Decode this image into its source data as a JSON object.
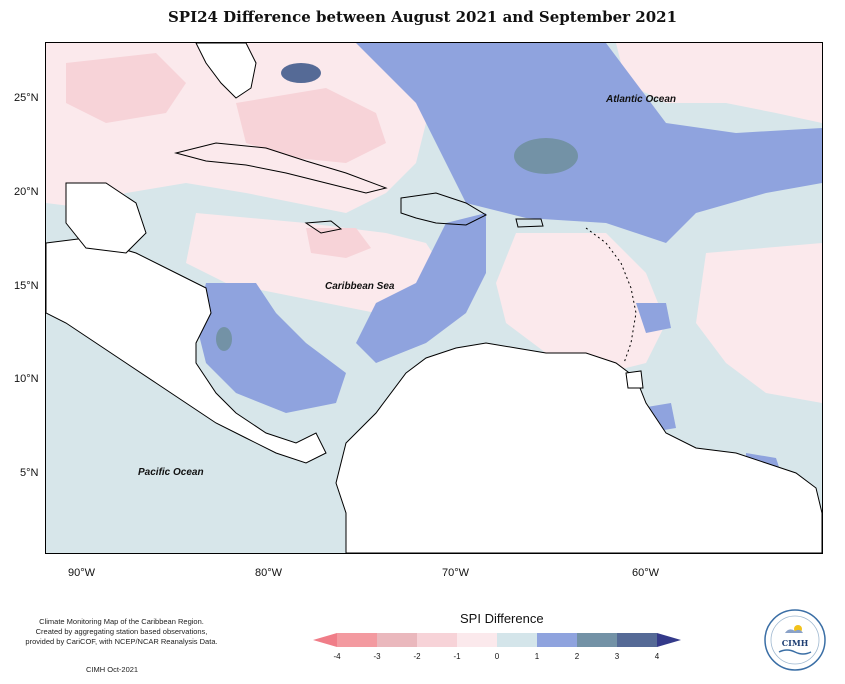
{
  "title": "SPI24 Difference between August 2021 and September 2021",
  "latitude_labels": [
    "25°N",
    "20°N",
    "15°N",
    "10°N",
    "5°N"
  ],
  "longitude_labels": [
    "90°W",
    "80°W",
    "70°W",
    "60°W"
  ],
  "ocean_labels": {
    "atlantic": "Atlantic Ocean",
    "caribbean": "Caribbean Sea",
    "pacific": "Pacific Ocean"
  },
  "credits": {
    "line1": "Climate Monitoring Map of the Caribbean Region.",
    "line2": "Created by aggregating station based observations,",
    "line3": "provided by CariCOF, with NCEP/NCAR Reanalysis Data.",
    "date": "CIMH Oct-2021"
  },
  "legend": {
    "title": "SPI Difference",
    "ticks": [
      "-4",
      "-3",
      "-2",
      "-1",
      "0",
      "1",
      "2",
      "3",
      "4"
    ],
    "colors": [
      "#f39aa0",
      "#eab8bd",
      "#f7d3d8",
      "#fbe9ec",
      "#d4e5ea",
      "#8fa3de",
      "#7392a6",
      "#556a96"
    ],
    "arrow_low_color": "#f07d88",
    "arrow_high_color": "#343a8a"
  },
  "logo": {
    "text": "CIMH"
  },
  "palette": {
    "land": "#ffffff",
    "neutral": "#d7e6ea",
    "light_dry": "#fbe9ec",
    "dry": "#f7d3d8",
    "wet": "#8fa3de",
    "very_wet": "#7392a6"
  }
}
